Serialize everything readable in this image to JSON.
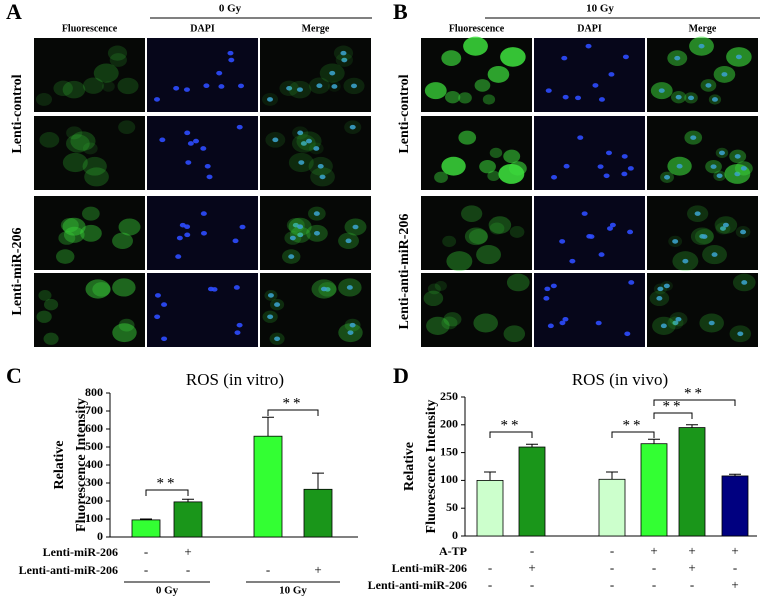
{
  "panel_a": {
    "letter": "A",
    "dose": "0 Gy",
    "columns": [
      "Fluorescence",
      "DAPI",
      "Merge"
    ],
    "rows": [
      "Lenti-control",
      "Lenti-miR-206"
    ]
  },
  "panel_b": {
    "letter": "B",
    "dose": "10 Gy",
    "columns": [
      "Fluorescence",
      "DAPI",
      "Merge"
    ],
    "rows": [
      "Lenti-control",
      "Lenti-anti-miR-206"
    ]
  },
  "chart_data": [
    {
      "type": "bar",
      "letter": "C",
      "title": "ROS (in vitro)",
      "ylabel": [
        "Relative",
        "Fluorescence Intensity"
      ],
      "values": [
        95,
        195,
        560,
        265
      ],
      "errors": [
        5,
        15,
        105,
        90
      ],
      "colors": [
        "#33ff33",
        "#1a961a",
        "#33ff33",
        "#1a961a"
      ],
      "ylim": [
        0,
        800
      ],
      "yticks": [
        0,
        100,
        200,
        300,
        400,
        500,
        600,
        700,
        800
      ],
      "conditions": [
        {
          "name": "Lenti-miR-206",
          "values": [
            "-",
            "+",
            null,
            null
          ]
        },
        {
          "name": "Lenti-anti-miR-206",
          "values": [
            "-",
            "-",
            "-",
            "+"
          ]
        }
      ],
      "groups": [
        {
          "label": "0 Gy",
          "bars": [
            0,
            1
          ]
        },
        {
          "label": "10 Gy",
          "bars": [
            2,
            3
          ]
        }
      ],
      "significance": [
        {
          "bars": [
            0,
            1
          ],
          "label": "**"
        },
        {
          "bars": [
            2,
            3
          ],
          "label": "**"
        }
      ]
    },
    {
      "type": "bar",
      "letter": "D",
      "title": "ROS (in vivo)",
      "ylabel": [
        "Relative",
        "Fluorescence Intensity"
      ],
      "values": [
        100,
        160,
        102,
        166,
        195,
        108
      ],
      "errors": [
        15,
        5,
        13,
        8,
        5,
        3
      ],
      "colors": [
        "#ccffcc",
        "#1a961a",
        "#ccffcc",
        "#33ff33",
        "#1a961a",
        "#000080"
      ],
      "ylim": [
        0,
        250
      ],
      "yticks": [
        0,
        50,
        100,
        150,
        200,
        250
      ],
      "conditions": [
        {
          "name": "A-TP",
          "values": [
            null,
            "-",
            "-",
            "+",
            "+",
            "+"
          ]
        },
        {
          "name": "Lenti-miR-206",
          "values": [
            "-",
            "+",
            "-",
            "-",
            "+",
            "-"
          ]
        },
        {
          "name": "Lenti-anti-miR-206",
          "values": [
            "-",
            "-",
            "-",
            "-",
            "-",
            "+"
          ]
        }
      ],
      "significance": [
        {
          "bars": [
            0,
            1
          ],
          "label": "**"
        },
        {
          "bars": [
            2,
            3
          ],
          "label": "**"
        },
        {
          "bars": [
            3,
            4
          ],
          "label": "**"
        },
        {
          "bars": [
            3,
            5
          ],
          "label": "**"
        }
      ]
    }
  ]
}
